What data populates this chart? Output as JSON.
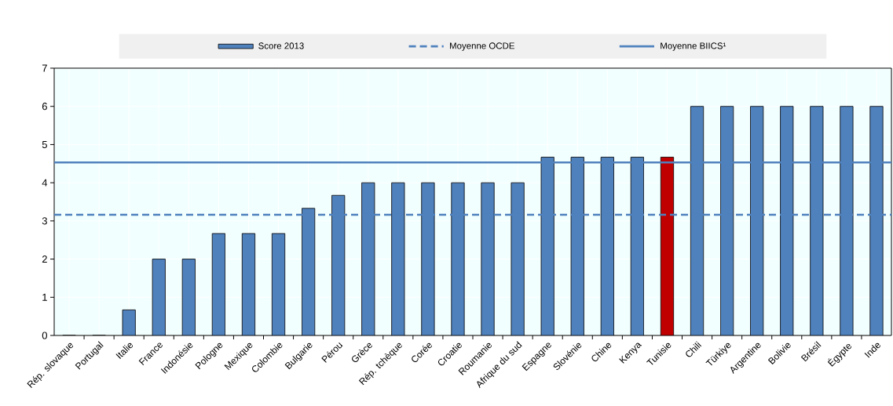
{
  "chart_data": {
    "type": "bar",
    "categories": [
      "Rép. slovaque",
      "Portugal",
      "Italie",
      "France",
      "Indonésie",
      "Pologne",
      "Mexique",
      "Colombie",
      "Bulgarie",
      "Pérou",
      "Grèce",
      "Rép. tchèque",
      "Corée",
      "Croatie",
      "Roumanie",
      "Afrique du sud",
      "Espagne",
      "Slovénie",
      "Chine",
      "Kenya",
      "Tunisie",
      "Chili",
      "Türkiye",
      "Argentine",
      "Bolivie",
      "Brésil",
      "Égypte",
      "Inde"
    ],
    "series": [
      {
        "name": "Score 2013",
        "color": "#4f81bd",
        "colors": [
          "#4f81bd",
          "#4f81bd",
          "#4f81bd",
          "#4f81bd",
          "#4f81bd",
          "#4f81bd",
          "#4f81bd",
          "#4f81bd",
          "#4f81bd",
          "#4f81bd",
          "#4f81bd",
          "#4f81bd",
          "#4f81bd",
          "#4f81bd",
          "#4f81bd",
          "#4f81bd",
          "#4f81bd",
          "#4f81bd",
          "#4f81bd",
          "#4f81bd",
          "#c00000",
          "#4f81bd",
          "#4f81bd",
          "#4f81bd",
          "#4f81bd",
          "#4f81bd",
          "#4f81bd",
          "#4f81bd"
        ],
        "values": [
          0,
          0,
          0.67,
          2,
          2,
          2.67,
          2.67,
          2.67,
          3.33,
          3.67,
          4,
          4,
          4,
          4,
          4,
          4,
          4.67,
          4.67,
          4.67,
          4.67,
          4.67,
          6,
          6,
          6,
          6,
          6,
          6,
          6
        ]
      }
    ],
    "ref_lines": [
      {
        "axis": "y",
        "value": 3.16,
        "label": "Moyenne OCDE",
        "color": "#4f81bd",
        "line_style": "dashed"
      },
      {
        "axis": "y",
        "value": 4.53,
        "label": "Moyenne BIICS¹",
        "color": "#4f81bd",
        "line_style": "solid"
      }
    ],
    "ylim": [
      0,
      7
    ],
    "yticks": [
      0,
      1,
      2,
      3,
      4,
      5,
      6,
      7
    ],
    "grid": true,
    "legend": "top"
  }
}
